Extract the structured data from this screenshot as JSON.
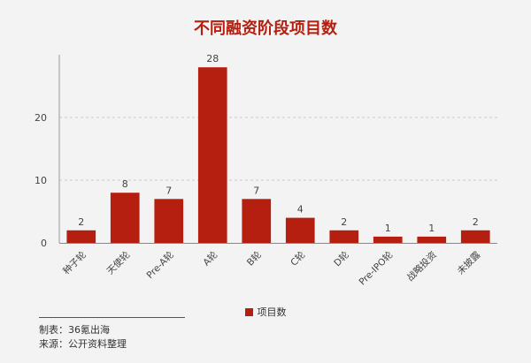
{
  "chart_data": {
    "type": "bar",
    "title": "不同融资阶段项目数",
    "categories": [
      "种子轮",
      "天使轮",
      "Pre-A轮",
      "A轮",
      "B轮",
      "C轮",
      "D轮",
      "Pre-IPO轮",
      "战略投资",
      "未披露"
    ],
    "series": [
      {
        "name": "项目数",
        "values": [
          2,
          8,
          7,
          28,
          7,
          4,
          2,
          1,
          1,
          2
        ]
      }
    ],
    "ylim": [
      0,
      30
    ],
    "yticks": [
      0,
      10,
      20
    ],
    "grid": true,
    "legend_position": "bottom",
    "bar_color": "#b41f0f"
  },
  "footer": {
    "made_by": "制表：36氪出海",
    "source": "来源：公开资料整理"
  }
}
